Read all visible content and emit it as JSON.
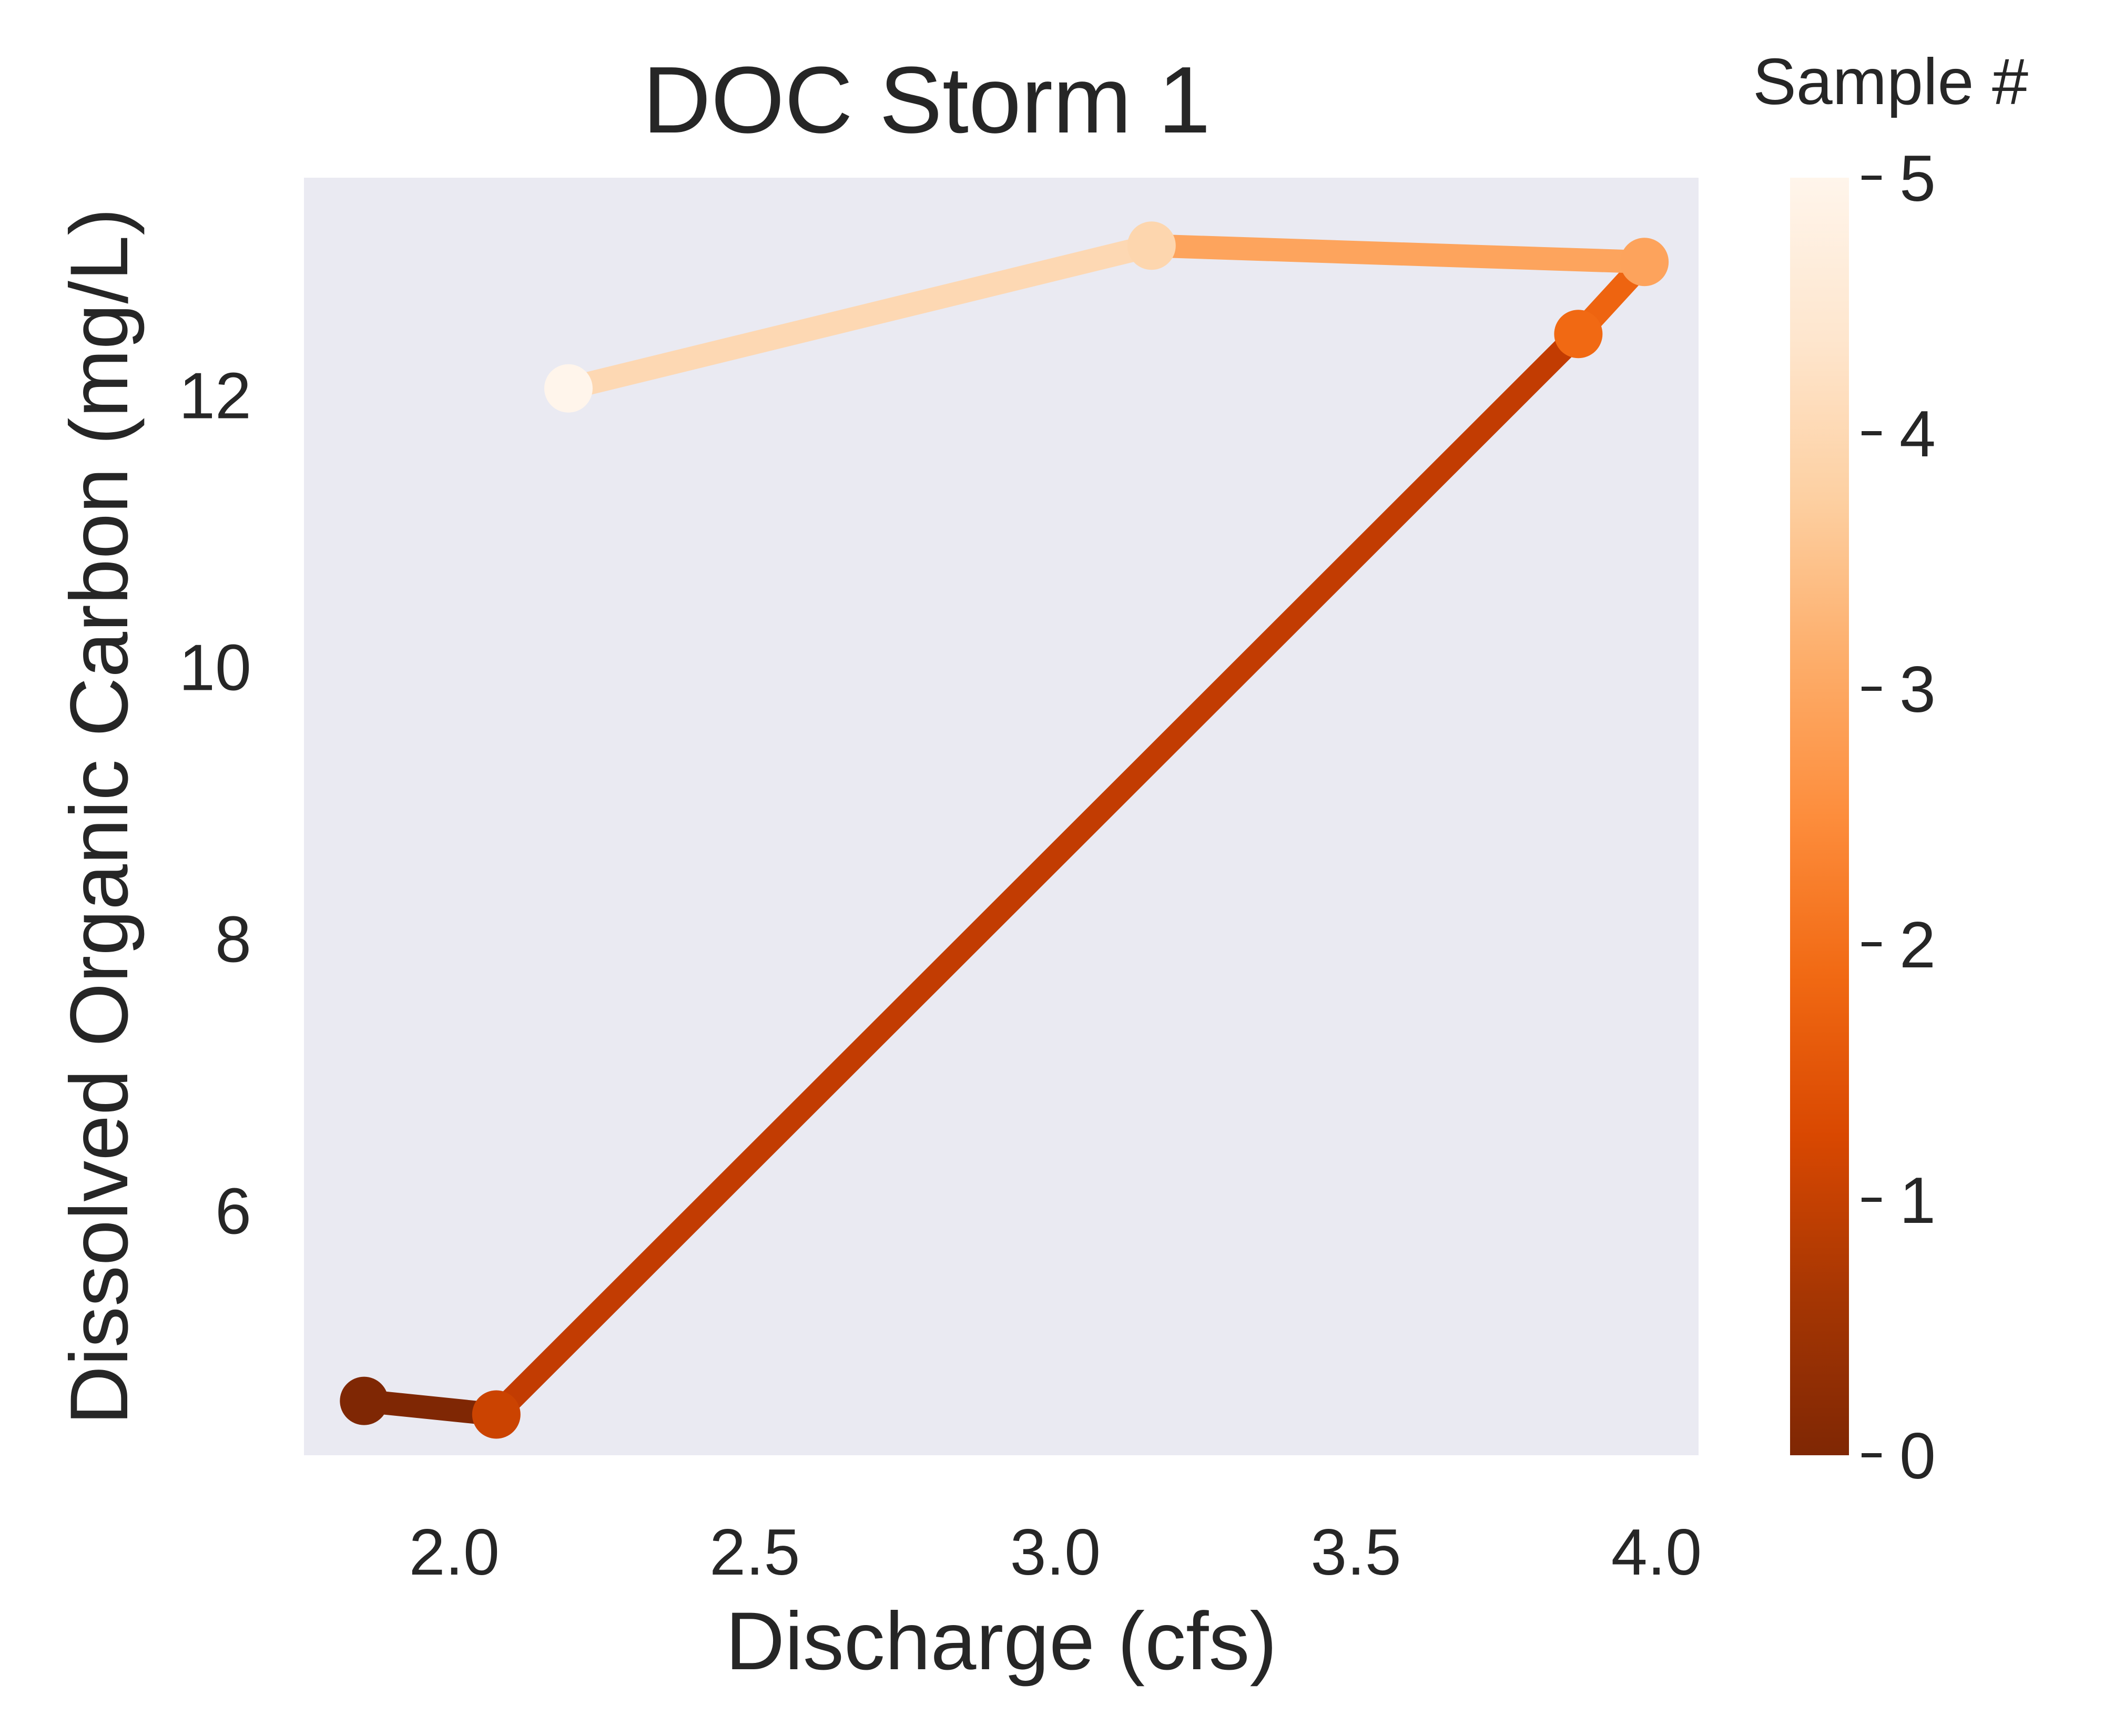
{
  "chart_data": {
    "type": "line",
    "title": "DOC Storm 1",
    "xlabel": "Discharge (cfs)",
    "ylabel": "Dissolved Organic Carbon (mg/L)",
    "xlim": [
      1.75,
      4.07
    ],
    "ylim": [
      4.2,
      13.6
    ],
    "xticks": [
      2.0,
      2.5,
      3.0,
      3.5,
      4.0
    ],
    "xtick_labels": [
      "2.0",
      "2.5",
      "3.0",
      "3.5",
      "4.0"
    ],
    "yticks": [
      6,
      8,
      10,
      12
    ],
    "ytick_labels": [
      "6",
      "8",
      "10",
      "12"
    ],
    "grid": false,
    "background": "#eaeaf2",
    "points": [
      {
        "sample": 0,
        "x": 1.85,
        "y": 4.6,
        "color": "#7f2704"
      },
      {
        "sample": 1,
        "x": 2.07,
        "y": 4.5,
        "color": "#cb4301"
      },
      {
        "sample": 2,
        "x": 3.87,
        "y": 12.45,
        "color": "#f16913"
      },
      {
        "sample": 3,
        "x": 3.98,
        "y": 12.98,
        "color": "#fda35c"
      },
      {
        "sample": 4,
        "x": 3.16,
        "y": 13.1,
        "color": "#fdd6ae"
      },
      {
        "sample": 5,
        "x": 2.19,
        "y": 12.05,
        "color": "#fff5eb"
      }
    ],
    "segment_colors": [
      "#7f2704",
      "#c23c02",
      "#ee6410",
      "#fda45d",
      "#fdd8b3"
    ],
    "colorbar": {
      "label": "Sample #",
      "min": 0,
      "max": 5,
      "ticks": [
        0,
        1,
        2,
        3,
        4,
        5
      ],
      "tick_labels": [
        "0",
        "1",
        "2",
        "3",
        "4",
        "5"
      ],
      "colormap": "Oranges_r",
      "stops": [
        "#7f2704",
        "#a63603",
        "#d94801",
        "#f16913",
        "#fd8d3c",
        "#fdae6b",
        "#fdd0a2",
        "#fee6ce",
        "#fff5eb"
      ]
    }
  }
}
